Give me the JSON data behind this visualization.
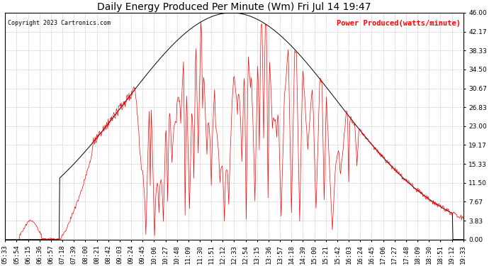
{
  "title": "Daily Energy Produced Per Minute (Wm) Fri Jul 14 19:47",
  "copyright": "Copyright 2023 Cartronics.com",
  "legend_label": "Power Produced(watts/minute)",
  "yticks": [
    0.0,
    3.83,
    7.67,
    11.5,
    15.33,
    19.17,
    23.0,
    26.83,
    30.67,
    34.5,
    38.33,
    42.17,
    46.0
  ],
  "ymax": 46.0,
  "ymin": 0.0,
  "line_color": "red",
  "background_color": "#ffffff",
  "grid_color": "#bbbbbb",
  "title_fontsize": 10,
  "tick_fontsize": 6.5,
  "xtick_labels": [
    "05:33",
    "05:54",
    "06:15",
    "06:36",
    "06:57",
    "07:18",
    "07:39",
    "08:00",
    "08:21",
    "08:42",
    "09:03",
    "09:24",
    "09:45",
    "10:06",
    "10:27",
    "10:48",
    "11:09",
    "11:30",
    "11:51",
    "12:12",
    "12:33",
    "12:54",
    "13:15",
    "13:36",
    "13:57",
    "14:18",
    "14:39",
    "15:00",
    "15:21",
    "15:42",
    "16:03",
    "16:24",
    "16:45",
    "17:06",
    "17:27",
    "17:48",
    "18:09",
    "18:30",
    "18:51",
    "19:12",
    "19:33"
  ]
}
